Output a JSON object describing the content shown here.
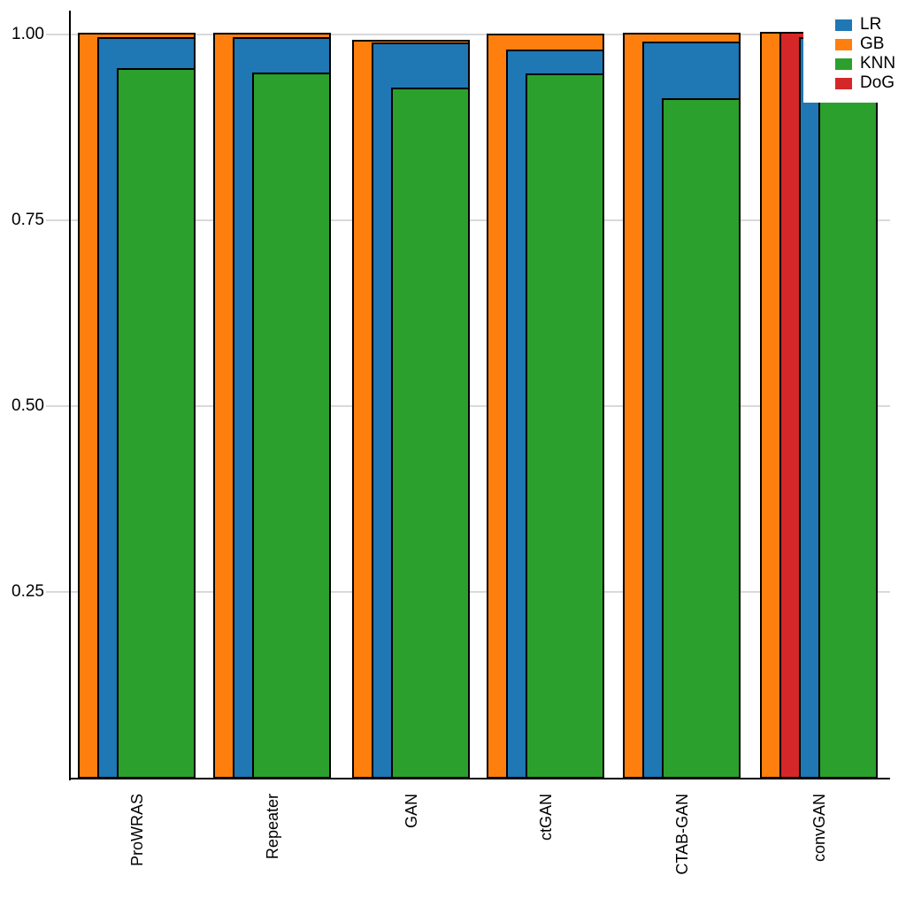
{
  "chart_data": {
    "type": "bar",
    "title": "",
    "xlabel": "",
    "ylabel": "",
    "categories": [
      "ProWRAS",
      "Repeater",
      "GAN",
      "ctGAN",
      "CTAB-GAN",
      "convGAN"
    ],
    "series": [
      {
        "name": "LR",
        "color": "#1f77b4",
        "values": [
          0.997,
          0.996,
          0.989,
          0.98,
          0.991,
          0.996
        ]
      },
      {
        "name": "GB",
        "color": "#ff7f0e",
        "values": [
          1.002,
          1.002,
          0.993,
          1.001,
          1.002,
          1.003
        ]
      },
      {
        "name": "KNN",
        "color": "#2ca02c",
        "values": [
          0.955,
          0.949,
          0.928,
          0.948,
          0.914,
          0.912
        ]
      },
      {
        "name": "DoG",
        "color": "#d62728",
        "values": [
          null,
          null,
          null,
          null,
          null,
          1.003
        ]
      }
    ],
    "draw_order": [
      "GB",
      "DoG",
      "LR",
      "KNN"
    ],
    "bar_style": "overlaid-nested-right-aligned",
    "bar_edge_color": "#000000",
    "yticks": [
      {
        "label": "1.00",
        "value": 1.0
      },
      {
        "label": "0.75",
        "value": 0.75
      },
      {
        "label": "0.50",
        "value": 0.5
      },
      {
        "label": "0.25",
        "value": 0.25
      }
    ],
    "ylim": [
      0,
      1.035
    ],
    "grid": true,
    "grid_color": "#d9d9d9",
    "x_tick_rotation": 90,
    "legend_position": "top-right",
    "legend": [
      "LR",
      "GB",
      "KNN",
      "DoG"
    ]
  }
}
